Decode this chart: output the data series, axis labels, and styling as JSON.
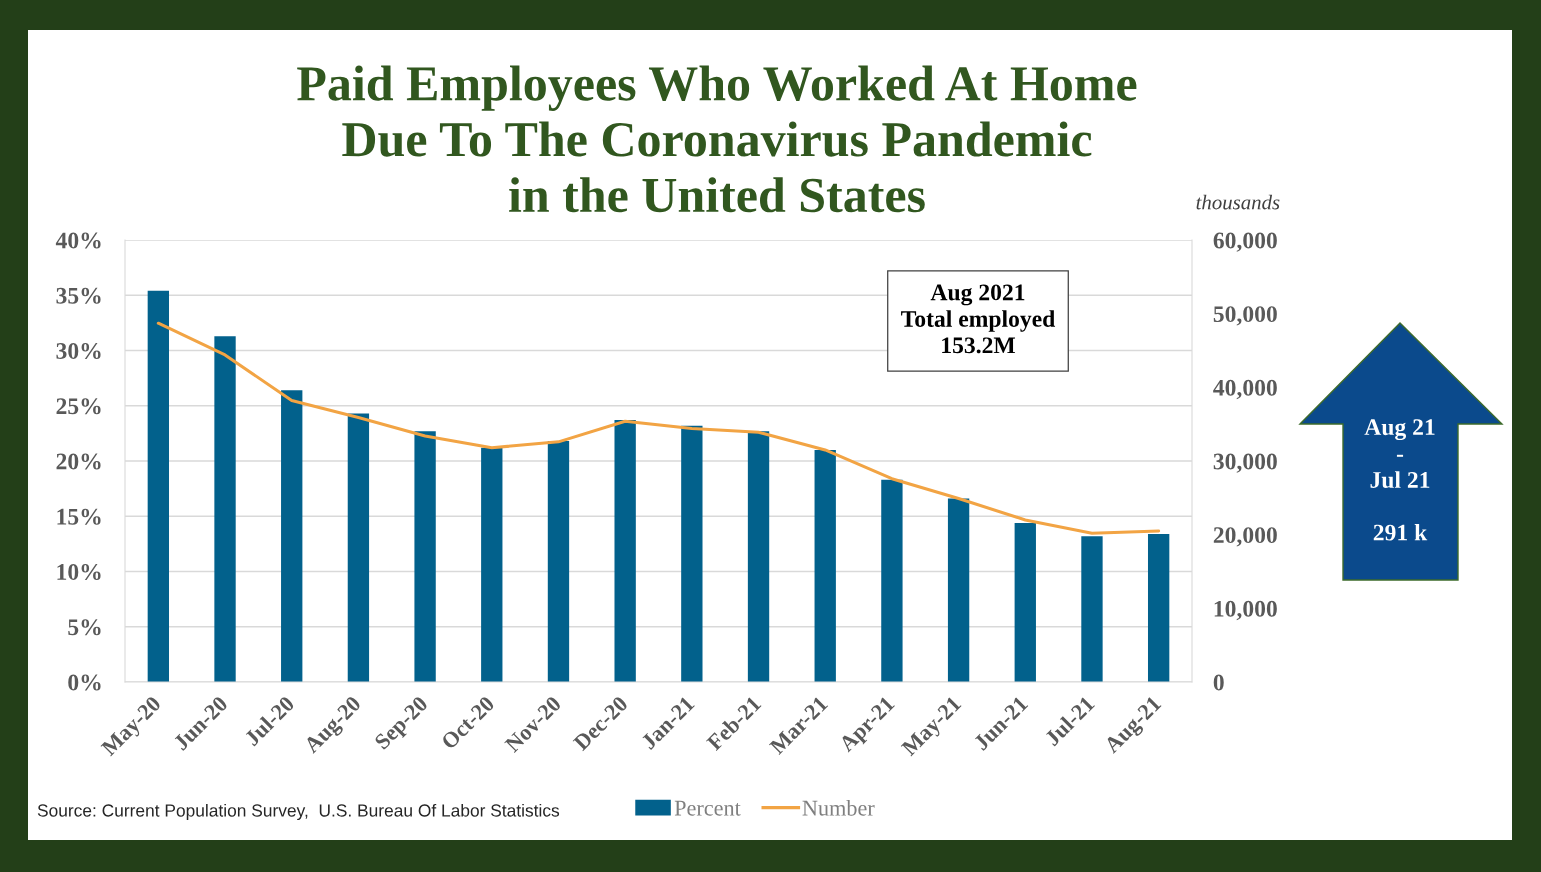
{
  "chart_data": {
    "type": "bar",
    "title": "Paid Employees Who Worked At Home\nDue To The Coronavirus Pandemic\nin the United States",
    "y2label": "thousands",
    "annotations": [
      "Source: Current Population Survey,  U.S. Bureau Of Labor Statistics",
      "Aug 2021\nTotal employed\n153.2M",
      "Aug 21\n-\nJul 21\n\n291 k"
    ],
    "categories": [
      "May-20",
      "Jun-20",
      "Jul-20",
      "Aug-20",
      "Sep-20",
      "Oct-20",
      "Nov-20",
      "Dec-20",
      "Jan-21",
      "Feb-21",
      "Mar-21",
      "Apr-21",
      "May-21",
      "Jun-21",
      "Jul-21",
      "Aug-21"
    ],
    "series": [
      {
        "name": "Percent",
        "color": "#02618c",
        "values": [
          35.4,
          31.3,
          26.4,
          24.3,
          22.7,
          21.2,
          21.8,
          23.7,
          23.2,
          22.7,
          21.0,
          18.3,
          16.6,
          14.4,
          13.2,
          13.4
        ]
      },
      {
        "name": "Number",
        "type": "line",
        "axis": "y2",
        "color": "#f2a444",
        "values": [
          48700,
          44400,
          38200,
          35900,
          33400,
          31800,
          32600,
          35400,
          34400,
          33900,
          31500,
          27600,
          24900,
          22000,
          20200,
          20500
        ]
      }
    ],
    "ylim": [
      0,
      40
    ],
    "yticks": [
      {
        "value": 0,
        "label": "0%"
      },
      {
        "value": 5,
        "label": "5%"
      },
      {
        "value": 10,
        "label": "10%"
      },
      {
        "value": 15,
        "label": "15%"
      },
      {
        "value": 20,
        "label": "20%"
      },
      {
        "value": 25,
        "label": "25%"
      },
      {
        "value": 30,
        "label": "30%"
      },
      {
        "value": 35,
        "label": "35%"
      },
      {
        "value": 40,
        "label": "40%"
      }
    ],
    "y2lim": [
      0,
      60000
    ],
    "y2ticks": [
      0,
      {
        "value": 10000,
        "label": "10,000"
      },
      {
        "value": 20000,
        "label": "20,000"
      },
      {
        "value": 30000,
        "label": "30,000"
      },
      {
        "value": 40000,
        "label": "40,000"
      },
      {
        "value": 50000,
        "label": "50,000"
      },
      {
        "value": 60000,
        "label": "60,000"
      }
    ],
    "grid": "y",
    "legend": "bottom"
  }
}
